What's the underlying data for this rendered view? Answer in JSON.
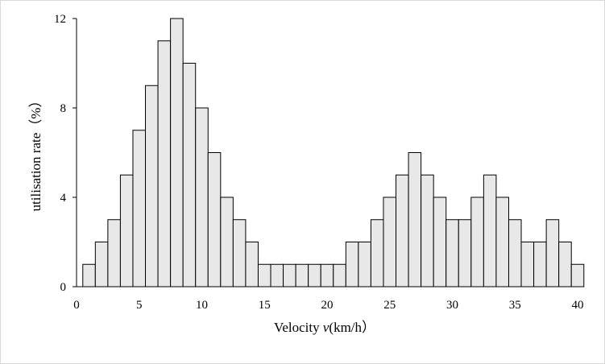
{
  "chart_data": {
    "type": "bar",
    "xlabel_prefix": "Velocity ",
    "xlabel_var": "v",
    "xlabel_unit": "(km/h）",
    "ylabel": "utilisation rate（%）",
    "xlim": [
      0,
      40
    ],
    "ylim": [
      0,
      12
    ],
    "x_ticks": [
      0,
      5,
      10,
      15,
      20,
      25,
      30,
      35,
      40
    ],
    "y_ticks": [
      0,
      4,
      8,
      12
    ],
    "bin_width": 1,
    "bin_starts": [
      0.5,
      1.5,
      2.5,
      3.5,
      4.5,
      5.5,
      6.5,
      7.5,
      8.5,
      9.5,
      10.5,
      11.5,
      12.5,
      13.5,
      14.5,
      15.5,
      16.5,
      17.5,
      18.5,
      19.5,
      20.5,
      21.5,
      22.5,
      23.5,
      24.5,
      25.5,
      26.5,
      27.5,
      28.5,
      29.5,
      30.5,
      31.5,
      32.5,
      33.5,
      34.5,
      35.5,
      36.5,
      37.5,
      38.5,
      39.5
    ],
    "values": [
      1,
      2,
      3,
      5,
      7,
      9,
      11,
      12,
      10,
      8,
      6,
      4,
      3,
      2,
      1,
      1,
      1,
      1,
      1,
      1,
      1,
      2,
      2,
      3,
      4,
      5,
      6,
      5,
      4,
      3,
      3,
      4,
      5,
      4,
      3,
      2,
      2,
      3,
      2,
      1
    ],
    "bar_fill": "#e8e8e8",
    "bar_stroke": "#000000",
    "grid": false,
    "legend": "none"
  }
}
